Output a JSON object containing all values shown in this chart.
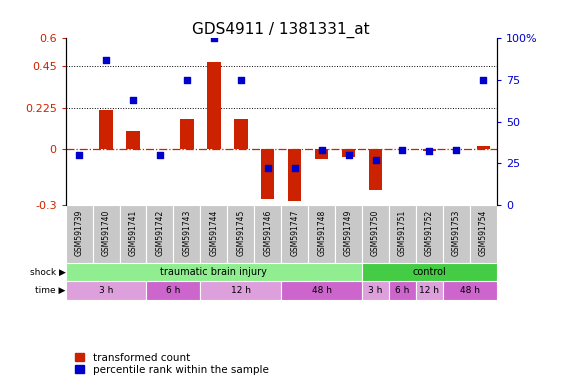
{
  "title": "GDS4911 / 1381331_at",
  "samples": [
    "GSM591739",
    "GSM591740",
    "GSM591741",
    "GSM591742",
    "GSM591743",
    "GSM591744",
    "GSM591745",
    "GSM591746",
    "GSM591747",
    "GSM591748",
    "GSM591749",
    "GSM591750",
    "GSM591751",
    "GSM591752",
    "GSM591753",
    "GSM591754"
  ],
  "red_values": [
    0.0,
    0.21,
    0.1,
    0.0,
    0.165,
    0.47,
    0.165,
    -0.27,
    -0.28,
    -0.05,
    -0.04,
    -0.22,
    0.0,
    -0.01,
    0.0,
    0.02
  ],
  "blue_percentiles": [
    30,
    87,
    63,
    30,
    75,
    100,
    75,
    22,
    22,
    33,
    30,
    27,
    33,
    32,
    33,
    75
  ],
  "ylim_left": [
    -0.3,
    0.6
  ],
  "ylim_right": [
    0,
    100
  ],
  "yticks_left": [
    -0.3,
    0.0,
    0.225,
    0.45,
    0.6
  ],
  "yticks_right": [
    0,
    25,
    50,
    75,
    100
  ],
  "hline_dotted": [
    0.225,
    0.45
  ],
  "hline_dash": 0.0,
  "bar_color": "#CC2200",
  "dot_color": "#0000CC",
  "bg_color": "#FFFFFF",
  "title_fontsize": 11,
  "axis_fontsize": 8,
  "legend_fontsize": 7.5,
  "sample_cell_color": "#C8C8C8",
  "tbi_color": "#90EE90",
  "ctrl_color": "#44CC44",
  "time_color_light": "#DDA0DD",
  "time_color_dark": "#CC66CC",
  "shock_groups": [
    {
      "label": "traumatic brain injury",
      "start": 0,
      "end": 11
    },
    {
      "label": "control",
      "start": 11,
      "end": 16
    }
  ],
  "time_groups": [
    {
      "label": "3 h",
      "start": 0,
      "end": 3,
      "dark": false
    },
    {
      "label": "6 h",
      "start": 3,
      "end": 5,
      "dark": true
    },
    {
      "label": "12 h",
      "start": 5,
      "end": 8,
      "dark": false
    },
    {
      "label": "48 h",
      "start": 8,
      "end": 11,
      "dark": true
    },
    {
      "label": "3 h",
      "start": 11,
      "end": 12,
      "dark": false
    },
    {
      "label": "6 h",
      "start": 12,
      "end": 13,
      "dark": true
    },
    {
      "label": "12 h",
      "start": 13,
      "end": 14,
      "dark": false
    },
    {
      "label": "48 h",
      "start": 14,
      "end": 16,
      "dark": true
    }
  ]
}
